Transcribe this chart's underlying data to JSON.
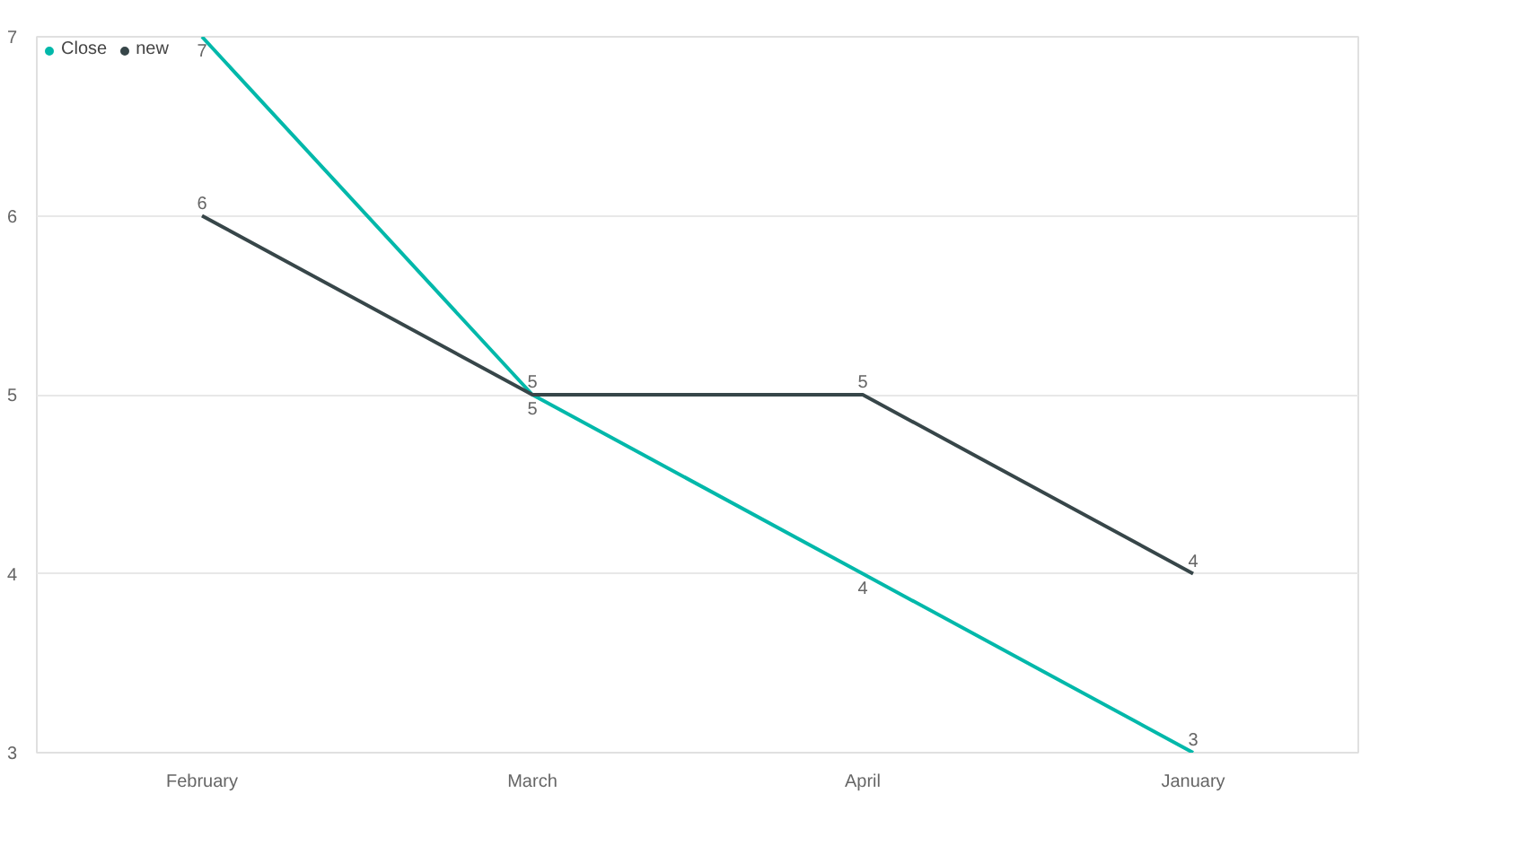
{
  "chart_data": {
    "type": "line",
    "categories": [
      "February",
      "March",
      "April",
      "January"
    ],
    "series": [
      {
        "name": "Close",
        "color": "#01b8aa",
        "values": [
          7,
          5,
          4,
          3
        ]
      },
      {
        "name": "new",
        "color": "#374649",
        "values": [
          6,
          5,
          5,
          4
        ]
      }
    ],
    "ylim": [
      3,
      7
    ],
    "yticks": [
      3,
      4,
      5,
      6,
      7
    ],
    "grid": "y",
    "legend": "top left",
    "data_labels": true,
    "marker": "none",
    "line_style": "solid"
  }
}
